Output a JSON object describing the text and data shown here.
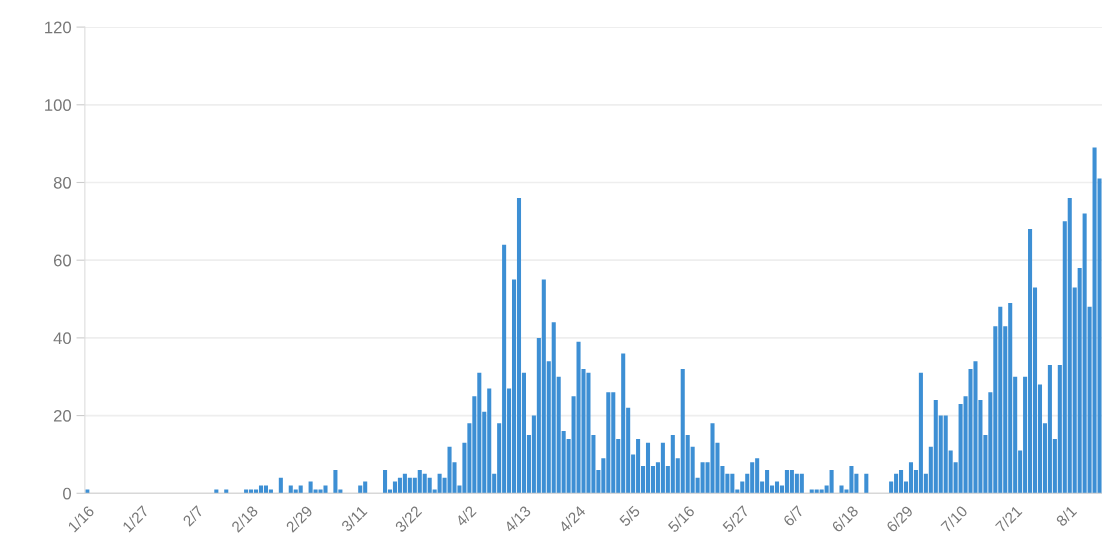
{
  "chart_data": {
    "type": "bar",
    "categories": [
      "1/16",
      null,
      null,
      null,
      null,
      null,
      null,
      null,
      null,
      null,
      null,
      "1/27",
      null,
      null,
      null,
      null,
      null,
      null,
      null,
      null,
      null,
      null,
      "2/7",
      null,
      null,
      null,
      null,
      null,
      null,
      null,
      null,
      null,
      null,
      "2/18",
      null,
      null,
      null,
      null,
      null,
      null,
      null,
      null,
      null,
      null,
      "2/29",
      null,
      null,
      null,
      null,
      null,
      null,
      null,
      null,
      null,
      null,
      "3/11",
      null,
      null,
      null,
      null,
      null,
      null,
      null,
      null,
      null,
      null,
      "3/22",
      null,
      null,
      null,
      null,
      null,
      null,
      null,
      null,
      null,
      null,
      "4/2",
      null,
      null,
      null,
      null,
      null,
      null,
      null,
      null,
      null,
      null,
      "4/13",
      null,
      null,
      null,
      null,
      null,
      null,
      null,
      null,
      null,
      null,
      "4/24",
      null,
      null,
      null,
      null,
      null,
      null,
      null,
      null,
      null,
      null,
      "5/5",
      null,
      null,
      null,
      null,
      null,
      null,
      null,
      null,
      null,
      null,
      "5/16",
      null,
      null,
      null,
      null,
      null,
      null,
      null,
      null,
      null,
      null,
      "5/27",
      null,
      null,
      null,
      null,
      null,
      null,
      null,
      null,
      null,
      null,
      "6/7",
      null,
      null,
      null,
      null,
      null,
      null,
      null,
      null,
      null,
      null,
      "6/18",
      null,
      null,
      null,
      null,
      null,
      null,
      null,
      null,
      null,
      null,
      "6/29",
      null,
      null,
      null,
      null,
      null,
      null,
      null,
      null,
      null,
      null,
      "7/10",
      null,
      null,
      null,
      null,
      null,
      null,
      null,
      null,
      null,
      null,
      "7/21",
      null,
      null,
      null,
      null,
      null,
      null,
      null,
      null,
      null,
      null,
      "8/1",
      null,
      null,
      null,
      null,
      null,
      null
    ],
    "series": [
      {
        "color": "#3d8fd4",
        "values": [
          1,
          0,
          0,
          0,
          0,
          0,
          0,
          0,
          0,
          0,
          0,
          0,
          0,
          0,
          0,
          0,
          0,
          0,
          0,
          0,
          0,
          0,
          0,
          0,
          0,
          0,
          1,
          0,
          1,
          0,
          0,
          0,
          1,
          1,
          1,
          2,
          2,
          1,
          0,
          4,
          0,
          2,
          1,
          2,
          0,
          3,
          1,
          1,
          2,
          0,
          6,
          1,
          0,
          0,
          0,
          2,
          3,
          0,
          0,
          0,
          6,
          1,
          3,
          4,
          5,
          4,
          4,
          6,
          5,
          4,
          1,
          5,
          4,
          12,
          8,
          2,
          13,
          18,
          25,
          31,
          21,
          27,
          5,
          18,
          64,
          27,
          55,
          76,
          31,
          15,
          20,
          40,
          55,
          34,
          44,
          30,
          16,
          14,
          25,
          39,
          32,
          31,
          15,
          6,
          9,
          26,
          26,
          14,
          36,
          22,
          10,
          14,
          7,
          13,
          7,
          8,
          13,
          7,
          15,
          9,
          32,
          15,
          12,
          4,
          8,
          8,
          18,
          13,
          7,
          5,
          5,
          1,
          3,
          5,
          8,
          9,
          3,
          6,
          2,
          3,
          2,
          6,
          6,
          5,
          5,
          0,
          1,
          1,
          1,
          2,
          6,
          0,
          2,
          1,
          7,
          5,
          0,
          5,
          0,
          0,
          0,
          0,
          3,
          5,
          6,
          3,
          8,
          6,
          31,
          5,
          12,
          24,
          20,
          20,
          11,
          8,
          23,
          25,
          32,
          34,
          24,
          15,
          26,
          43,
          48,
          43,
          49,
          30,
          11,
          30,
          68,
          53,
          28,
          18,
          33,
          14,
          33,
          70,
          76,
          53,
          58,
          72,
          48,
          89,
          81
        ]
      }
    ],
    "ylim": [
      0,
      120
    ],
    "yticks": [
      0,
      20,
      40,
      60,
      80,
      100,
      120
    ],
    "grid": "y"
  }
}
